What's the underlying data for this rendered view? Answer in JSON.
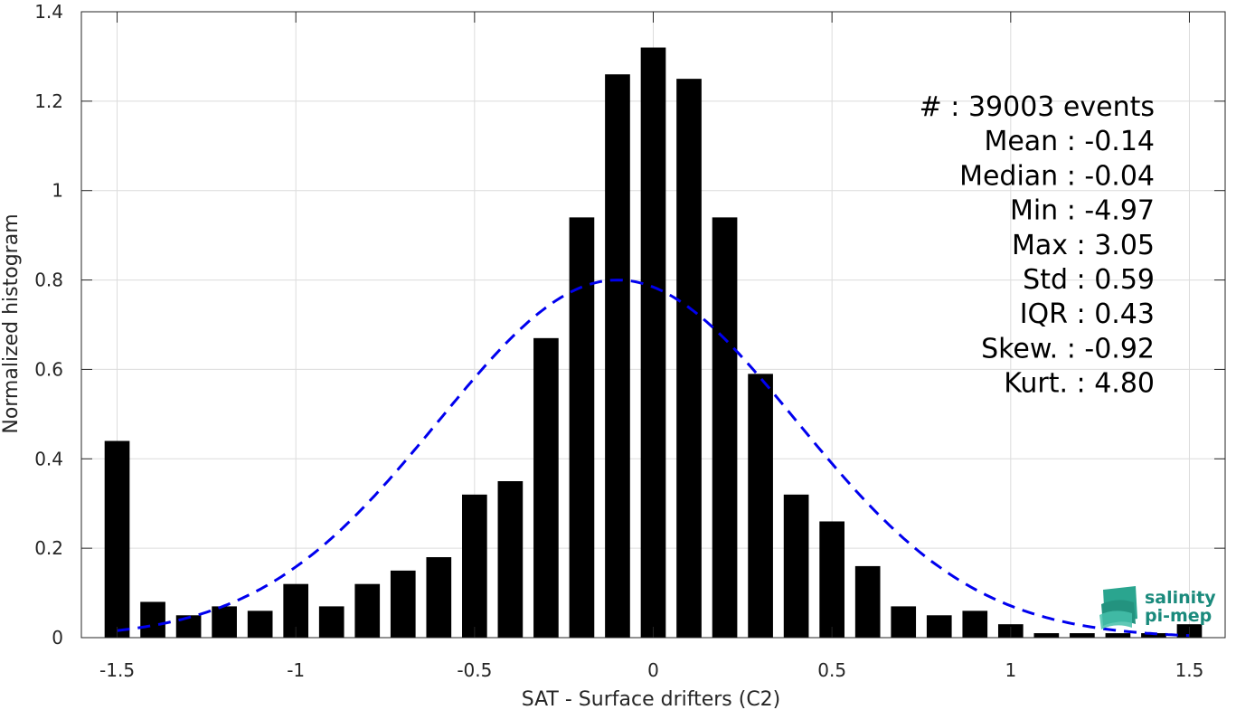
{
  "chart_data": {
    "type": "bar",
    "xlabel": "SAT - Surface drifters (C2)",
    "ylabel": "Normalized histogram",
    "xlim": [
      -1.6,
      1.6
    ],
    "ylim": [
      0,
      1.4
    ],
    "xticks": [
      -1.5,
      -1,
      -0.5,
      0,
      0.5,
      1,
      1.5
    ],
    "xtick_labels": [
      "-1.5",
      "-1",
      "-0.5",
      "0",
      "0.5",
      "1",
      "1.5"
    ],
    "yticks": [
      0,
      0.2,
      0.4,
      0.6,
      0.8,
      1,
      1.2,
      1.4
    ],
    "ytick_labels": [
      "0",
      "0.2",
      "0.4",
      "0.6",
      "0.8",
      "1",
      "1.2",
      "1.4"
    ],
    "grid": true,
    "bar_color": "#000000",
    "bins": [
      -1.5,
      -1.4,
      -1.3,
      -1.2,
      -1.1,
      -1.0,
      -0.9,
      -0.8,
      -0.7,
      -0.6,
      -0.5,
      -0.4,
      -0.3,
      -0.2,
      -0.1,
      0.0,
      0.1,
      0.2,
      0.3,
      0.4,
      0.5,
      0.6,
      0.7,
      0.8,
      0.9,
      1.0,
      1.1,
      1.2,
      1.3,
      1.4,
      1.5
    ],
    "values": [
      0.44,
      0.08,
      0.05,
      0.07,
      0.06,
      0.12,
      0.07,
      0.12,
      0.15,
      0.18,
      0.32,
      0.35,
      0.67,
      0.94,
      1.26,
      1.32,
      1.25,
      0.94,
      0.59,
      0.32,
      0.26,
      0.16,
      0.07,
      0.05,
      0.06,
      0.03,
      0.01,
      0.01,
      0.01,
      0.01,
      0.03
    ],
    "fit_curve": {
      "style": "dashed",
      "color": "#0000ee",
      "mean": -0.1,
      "std": 0.5,
      "x_range": [
        -1.5,
        1.5
      ]
    },
    "stats": [
      "#  : 39003 events",
      "Mean : -0.14",
      "Median : -0.04",
      "Min : -4.97",
      "Max : 3.05",
      "Std : 0.59",
      "IQR : 0.43",
      "Skew. : -0.92",
      "Kurt. : 4.80"
    ]
  },
  "logo": {
    "line1": "salinity",
    "line2": "pi-mep",
    "color": "#1a8a7c"
  }
}
